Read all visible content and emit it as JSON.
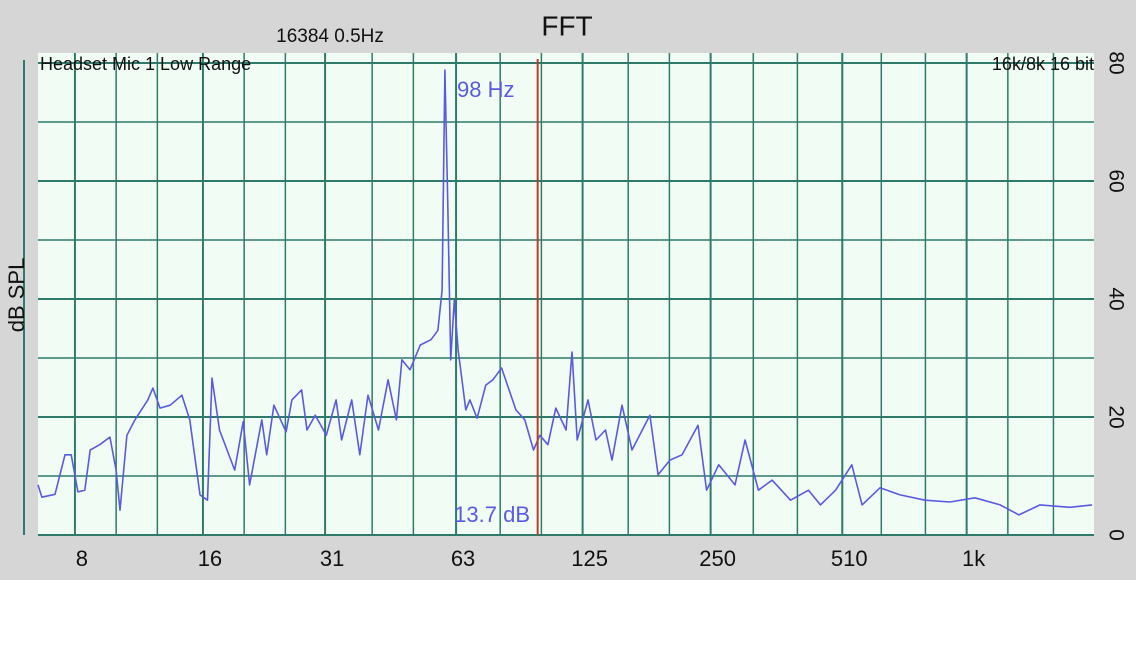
{
  "chart_data": {
    "type": "line",
    "title": "FFT",
    "subtitle": "16384  0.5Hz",
    "header_left": "Headset Mic 1 Low Range",
    "header_right": "16k/8k 16 bit",
    "y_label": "dB SPL",
    "log_x": true,
    "grid": true,
    "color": "#5a5ae0",
    "xlim": [
      6.55,
      1993
    ],
    "ylim": [
      0,
      80
    ],
    "xticks": [
      8,
      16,
      31,
      63,
      125,
      250,
      510,
      {
        "value": 1000,
        "label": "1k"
      }
    ],
    "minor_xticks": [
      10,
      12.5,
      20,
      25,
      40,
      50,
      80,
      100,
      160,
      200,
      315,
      400,
      630,
      800,
      1250,
      1600
    ],
    "yticks": [
      0,
      20,
      40,
      60,
      80
    ],
    "minor_yticks": [
      10,
      30,
      50,
      70
    ],
    "cursor": {
      "value": 98,
      "label": "98 Hz",
      "level_label": "13.7 dB",
      "color": "#c0392b"
    },
    "x": [
      6.55,
      6.69,
      7.18,
      7.58,
      7.84,
      8.13,
      8.44,
      8.69,
      9.15,
      9.67,
      10.0,
      10.21,
      10.6,
      11.07,
      11.87,
      12.2,
      12.68,
      13.4,
      14.28,
      14.9,
      15.75,
      16.4,
      16.8,
      17.5,
      19.0,
      19.9,
      20.6,
      22.0,
      22.6,
      23.5,
      25.1,
      25.9,
      27.3,
      28.1,
      29.4,
      31.2,
      32.9,
      33.9,
      35.8,
      37.4,
      39.1,
      41.4,
      43.6,
      45.6,
      47.0,
      49.1,
      51.9,
      55.0,
      57.1,
      58.4,
      59.3,
      60.2,
      61.2,
      62.4,
      63.7,
      66.4,
      67.9,
      70.6,
      74.0,
      76.9,
      80.6,
      87.1,
      91.4,
      95.8,
      99.2,
      103.6,
      108.1,
      114.3,
      118.0,
      121.4,
      128.7,
      134.4,
      141.5,
      146.6,
      154.7,
      163.3,
      180.0,
      188.1,
      200.5,
      214.2,
      233.5,
      244.6,
      261.2,
      285.3,
      301.4,
      323.8,
      348.7,
      385.2,
      424.7,
      452.9,
      491.9,
      537.1,
      567.7,
      625.6,
      697.4,
      798,
      913.6,
      1046,
      1199,
      1327,
      1488,
      1750,
      1973
    ],
    "values": [
      8.5,
      6.4,
      6.9,
      13.6,
      13.6,
      7.3,
      7.6,
      14.4,
      15.3,
      16.6,
      11.0,
      4.2,
      16.9,
      19.5,
      22.9,
      24.9,
      21.5,
      22.0,
      23.7,
      19.5,
      6.8,
      5.9,
      26.6,
      17.8,
      11.0,
      19.2,
      8.5,
      19.5,
      13.6,
      22.0,
      17.5,
      22.9,
      24.6,
      17.8,
      20.3,
      16.9,
      22.9,
      16.1,
      22.9,
      13.6,
      23.7,
      17.8,
      26.3,
      19.5,
      29.7,
      28.0,
      32.2,
      33.1,
      34.7,
      41.5,
      78.8,
      56.8,
      29.7,
      39.8,
      31.4,
      21.2,
      22.9,
      19.8,
      25.4,
      26.3,
      28.3,
      21.2,
      19.5,
      14.4,
      16.9,
      15.3,
      21.5,
      17.8,
      31.0,
      16.1,
      22.9,
      16.1,
      17.8,
      12.7,
      22.0,
      14.4,
      20.3,
      10.2,
      12.7,
      13.6,
      18.6,
      7.6,
      11.9,
      8.5,
      16.1,
      7.6,
      9.3,
      5.9,
      7.6,
      5.1,
      7.6,
      11.9,
      5.1,
      8.0,
      6.8,
      5.9,
      5.6,
      6.3,
      5.1,
      3.4,
      5.1,
      4.7,
      5.1
    ]
  }
}
